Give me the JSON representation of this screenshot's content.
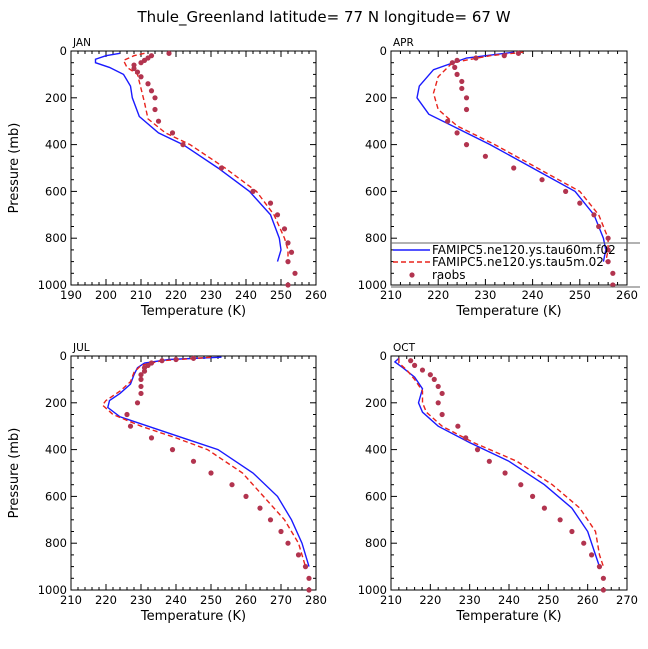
{
  "figure_title": "Thule_Greenland  latitude= 77 N longitude= 67 W",
  "legend": [
    {
      "label": "FAMIPC5.ne120.ys.tau60m.f02",
      "style": "solid",
      "color": "#1a1aff"
    },
    {
      "label": "FAMIPC5.ne120.ys.tau5m.02",
      "style": "dashed",
      "color": "#e8231c"
    },
    {
      "label": "raobs",
      "style": "dots",
      "color": "#b2344f"
    }
  ],
  "chart_data": [
    {
      "type": "line",
      "panel": "JAN",
      "xlabel": "Temperature (K)",
      "ylabel": "Pressure (mb)",
      "xlim": [
        190,
        260
      ],
      "ylim": [
        1000,
        0
      ],
      "xticks": [
        190,
        200,
        210,
        220,
        230,
        240,
        250,
        260
      ],
      "yticks": [
        0,
        200,
        400,
        600,
        800,
        1000
      ],
      "series": [
        {
          "name": "FAMIPC5.ne120.ys.tau60m.f02",
          "style": "solid",
          "points": [
            [
              204,
              10
            ],
            [
              200,
              20
            ],
            [
              197,
              35
            ],
            [
              197,
              50
            ],
            [
              201,
              70
            ],
            [
              205,
              100
            ],
            [
              207,
              150
            ],
            [
              207.5,
              200
            ],
            [
              209.5,
              280
            ],
            [
              215,
              350
            ],
            [
              222,
              400
            ],
            [
              232,
              500
            ],
            [
              241,
              600
            ],
            [
              247,
              700
            ],
            [
              249.5,
              800
            ],
            [
              250,
              850
            ],
            [
              249,
              900
            ]
          ]
        },
        {
          "name": "FAMIPC5.ne120.ys.tau5m.02",
          "style": "dashed",
          "points": [
            [
              211,
              10
            ],
            [
              208,
              20
            ],
            [
              205,
              40
            ],
            [
              206,
              70
            ],
            [
              209,
              100
            ],
            [
              210,
              160
            ],
            [
              211,
              220
            ],
            [
              212,
              290
            ],
            [
              217,
              350
            ],
            [
              224,
              400
            ],
            [
              234,
              500
            ],
            [
              243,
              600
            ],
            [
              248,
              700
            ],
            [
              251,
              800
            ],
            [
              252,
              850
            ],
            [
              252,
              900
            ]
          ]
        },
        {
          "name": "raobs",
          "style": "dots",
          "points": [
            [
              218,
              10
            ],
            [
              213,
              20
            ],
            [
              212,
              30
            ],
            [
              211,
              40
            ],
            [
              210,
              50
            ],
            [
              208,
              60
            ],
            [
              208,
              75
            ],
            [
              209,
              90
            ],
            [
              210,
              110
            ],
            [
              212,
              140
            ],
            [
              213,
              170
            ],
            [
              214,
              200
            ],
            [
              214,
              250
            ],
            [
              215,
              300
            ],
            [
              219,
              350
            ],
            [
              222,
              400
            ],
            [
              233,
              500
            ],
            [
              242,
              600
            ],
            [
              247,
              650
            ],
            [
              249,
              700
            ],
            [
              251,
              760
            ],
            [
              252,
              820
            ],
            [
              253,
              860
            ],
            [
              252,
              900
            ],
            [
              254,
              950
            ],
            [
              252,
              1000
            ]
          ]
        }
      ]
    },
    {
      "type": "line",
      "panel": "APR",
      "xlabel": "Temperature (K)",
      "ylabel": "",
      "xlim": [
        210,
        260
      ],
      "ylim": [
        1000,
        0
      ],
      "xticks": [
        210,
        220,
        230,
        240,
        250,
        260
      ],
      "yticks": [
        0,
        200,
        400,
        600,
        800,
        1000
      ],
      "series": [
        {
          "name": "FAMIPC5.ne120.ys.tau60m.f02",
          "style": "solid",
          "points": [
            [
              236,
              5
            ],
            [
              226,
              30
            ],
            [
              219,
              80
            ],
            [
              216,
              150
            ],
            [
              215.5,
              200
            ],
            [
              218,
              270
            ],
            [
              224,
              330
            ],
            [
              231,
              400
            ],
            [
              240,
              500
            ],
            [
              249,
              600
            ],
            [
              253,
              700
            ],
            [
              255,
              800
            ],
            [
              255.5,
              850
            ],
            [
              255,
              900
            ]
          ]
        },
        {
          "name": "FAMIPC5.ne120.ys.tau5m.02",
          "style": "dashed",
          "points": [
            [
              238,
              5
            ],
            [
              231,
              20
            ],
            [
              223,
              50
            ],
            [
              220,
              110
            ],
            [
              219,
              180
            ],
            [
              220,
              250
            ],
            [
              224,
              320
            ],
            [
              232,
              400
            ],
            [
              241,
              500
            ],
            [
              250,
              600
            ],
            [
              254,
              700
            ],
            [
              256,
              800
            ],
            [
              256,
              850
            ],
            [
              255.5,
              900
            ]
          ]
        },
        {
          "name": "raobs",
          "style": "dots",
          "points": [
            [
              237,
              10
            ],
            [
              234,
              20
            ],
            [
              228,
              30
            ],
            [
              224,
              40
            ],
            [
              223,
              50
            ],
            [
              223.5,
              70
            ],
            [
              224,
              100
            ],
            [
              225,
              130
            ],
            [
              225,
              160
            ],
            [
              226,
              200
            ],
            [
              226,
              250
            ],
            [
              222,
              300
            ],
            [
              224,
              350
            ],
            [
              226,
              400
            ],
            [
              230,
              450
            ],
            [
              236,
              500
            ],
            [
              242,
              550
            ],
            [
              247,
              600
            ],
            [
              250,
              650
            ],
            [
              253,
              700
            ],
            [
              254,
              750
            ],
            [
              256,
              800
            ],
            [
              256,
              850
            ],
            [
              256,
              900
            ],
            [
              257,
              950
            ],
            [
              257,
              1000
            ]
          ]
        }
      ]
    },
    {
      "type": "line",
      "panel": "JUL",
      "xlabel": "Temperature (K)",
      "ylabel": "Pressure (mb)",
      "xlim": [
        210,
        280
      ],
      "ylim": [
        1000,
        0
      ],
      "xticks": [
        210,
        220,
        230,
        240,
        250,
        260,
        270,
        280
      ],
      "yticks": [
        0,
        200,
        400,
        600,
        800,
        1000
      ],
      "series": [
        {
          "name": "FAMIPC5.ne120.ys.tau60m.f02",
          "style": "solid",
          "points": [
            [
              253,
              5
            ],
            [
              238,
              15
            ],
            [
              231,
              30
            ],
            [
              229,
              50
            ],
            [
              228,
              80
            ],
            [
              227,
              120
            ],
            [
              224,
              160
            ],
            [
              221,
              190
            ],
            [
              220.5,
              220
            ],
            [
              224,
              260
            ],
            [
              232,
              300
            ],
            [
              242,
              350
            ],
            [
              252,
              400
            ],
            [
              262,
              500
            ],
            [
              269,
              600
            ],
            [
              273,
              700
            ],
            [
              276,
              800
            ],
            [
              277,
              850
            ],
            [
              278,
              900
            ]
          ]
        },
        {
          "name": "FAMIPC5.ne120.ys.tau5m.02",
          "style": "dashed",
          "points": [
            [
              250,
              5
            ],
            [
              236,
              20
            ],
            [
              230,
              40
            ],
            [
              228,
              70
            ],
            [
              227,
              110
            ],
            [
              224,
              150
            ],
            [
              220,
              190
            ],
            [
              219,
              210
            ],
            [
              222,
              250
            ],
            [
              230,
              300
            ],
            [
              240,
              350
            ],
            [
              249,
              400
            ],
            [
              259,
              500
            ],
            [
              265,
              600
            ],
            [
              271,
              700
            ],
            [
              275,
              800
            ],
            [
              276,
              850
            ],
            [
              277,
              900
            ]
          ]
        },
        {
          "name": "raobs",
          "style": "dots",
          "points": [
            [
              245,
              10
            ],
            [
              240,
              15
            ],
            [
              236,
              20
            ],
            [
              233,
              30
            ],
            [
              232,
              40
            ],
            [
              231,
              50
            ],
            [
              231,
              65
            ],
            [
              230,
              80
            ],
            [
              230,
              100
            ],
            [
              230,
              130
            ],
            [
              230,
              160
            ],
            [
              229,
              200
            ],
            [
              226,
              250
            ],
            [
              227,
              300
            ],
            [
              233,
              350
            ],
            [
              239,
              400
            ],
            [
              245,
              450
            ],
            [
              250,
              500
            ],
            [
              256,
              550
            ],
            [
              260,
              600
            ],
            [
              264,
              650
            ],
            [
              267,
              700
            ],
            [
              270,
              750
            ],
            [
              272,
              800
            ],
            [
              275,
              850
            ],
            [
              277,
              900
            ],
            [
              278,
              950
            ],
            [
              278,
              1000
            ]
          ]
        }
      ]
    },
    {
      "type": "line",
      "panel": "OCT",
      "xlabel": "Temperature (K)",
      "ylabel": "",
      "xlim": [
        210,
        270
      ],
      "ylim": [
        1000,
        0
      ],
      "xticks": [
        210,
        220,
        230,
        240,
        250,
        260,
        270
      ],
      "yticks": [
        0,
        200,
        400,
        600,
        800,
        1000
      ],
      "series": [
        {
          "name": "FAMIPC5.ne120.ys.tau60m.f02",
          "style": "solid",
          "points": [
            [
              212,
              10
            ],
            [
              211,
              25
            ],
            [
              213,
              50
            ],
            [
              216,
              90
            ],
            [
              218,
              140
            ],
            [
              217,
              200
            ],
            [
              218,
              240
            ],
            [
              222,
              300
            ],
            [
              230,
              370
            ],
            [
              240,
              450
            ],
            [
              249,
              550
            ],
            [
              256,
              650
            ],
            [
              260,
              750
            ],
            [
              262,
              850
            ],
            [
              263,
              900
            ]
          ]
        },
        {
          "name": "FAMIPC5.ne120.ys.tau5m.02",
          "style": "dashed",
          "points": [
            [
              212,
              10
            ],
            [
              212,
              30
            ],
            [
              214,
              60
            ],
            [
              216,
              100
            ],
            [
              218,
              150
            ],
            [
              218,
              200
            ],
            [
              219,
              240
            ],
            [
              223,
              300
            ],
            [
              231,
              370
            ],
            [
              242,
              450
            ],
            [
              251,
              550
            ],
            [
              258,
              650
            ],
            [
              262,
              750
            ],
            [
              263,
              850
            ],
            [
              264,
              900
            ]
          ]
        },
        {
          "name": "raobs",
          "style": "dots",
          "points": [
            [
              215,
              20
            ],
            [
              216,
              40
            ],
            [
              218,
              60
            ],
            [
              220,
              80
            ],
            [
              221,
              100
            ],
            [
              222,
              130
            ],
            [
              223,
              160
            ],
            [
              222,
              200
            ],
            [
              223,
              250
            ],
            [
              227,
              300
            ],
            [
              229,
              350
            ],
            [
              232,
              400
            ],
            [
              235,
              450
            ],
            [
              239,
              500
            ],
            [
              243,
              550
            ],
            [
              246,
              600
            ],
            [
              249,
              650
            ],
            [
              253,
              700
            ],
            [
              256,
              750
            ],
            [
              259,
              800
            ],
            [
              261,
              850
            ],
            [
              263,
              900
            ],
            [
              264,
              950
            ],
            [
              264,
              1000
            ]
          ]
        }
      ]
    }
  ]
}
